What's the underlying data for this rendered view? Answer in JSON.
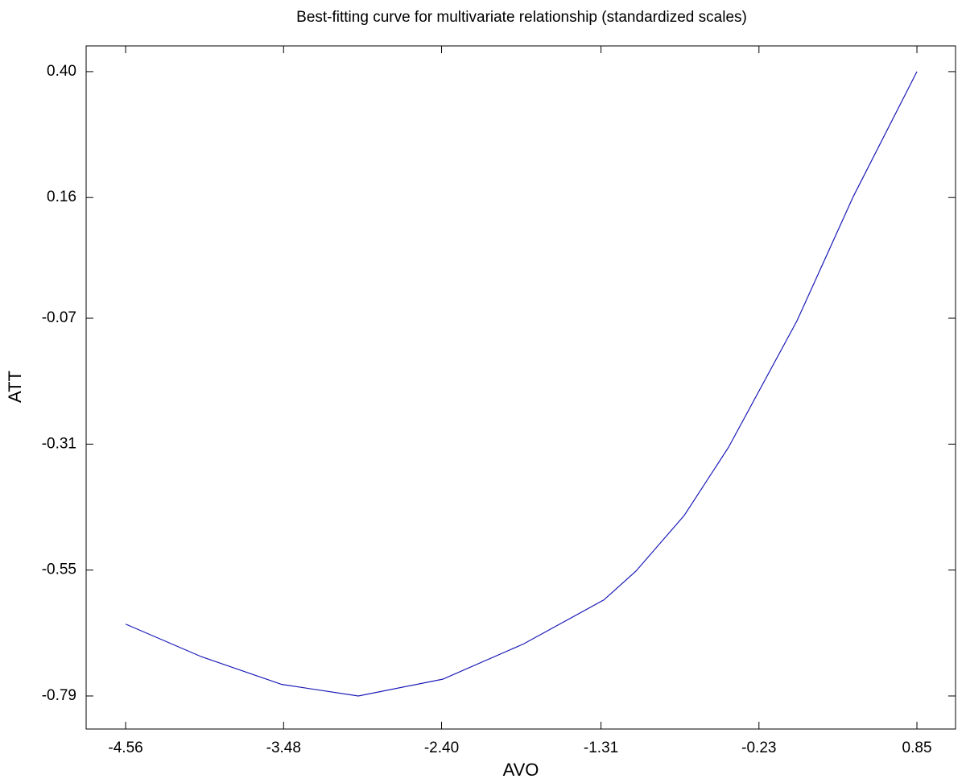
{
  "chart_data": {
    "type": "line",
    "title": "Best-fitting curve for multivariate relationship (standardized scales)",
    "xlabel": "AVO",
    "ylabel": "ATT",
    "x": [
      -4.56,
      -4.043,
      -3.492,
      -2.969,
      -2.392,
      -1.841,
      -1.291,
      -1.071,
      -0.741,
      -0.438,
      0.03,
      0.415,
      0.85
    ],
    "series": [
      {
        "color": "#1a1ab8",
        "values": [
          -0.653,
          -0.715,
          -0.768,
          -0.79,
          -0.758,
          -0.691,
          -0.607,
          -0.552,
          -0.446,
          -0.316,
          -0.075,
          0.162,
          0.4
        ]
      }
    ],
    "xlim": [
      -4.83,
      1.114
    ],
    "ylim": [
      -0.853,
      0.449
    ],
    "xticks": [
      -4.56,
      -3.48,
      {
        "value": -2.4,
        "label": "-2.40"
      },
      -1.31,
      -0.23,
      0.85
    ],
    "yticks": [
      -0.79,
      -0.55,
      -0.31,
      -0.07,
      0.16,
      {
        "value": 0.4,
        "label": "0.40"
      }
    ],
    "grid": false
  }
}
